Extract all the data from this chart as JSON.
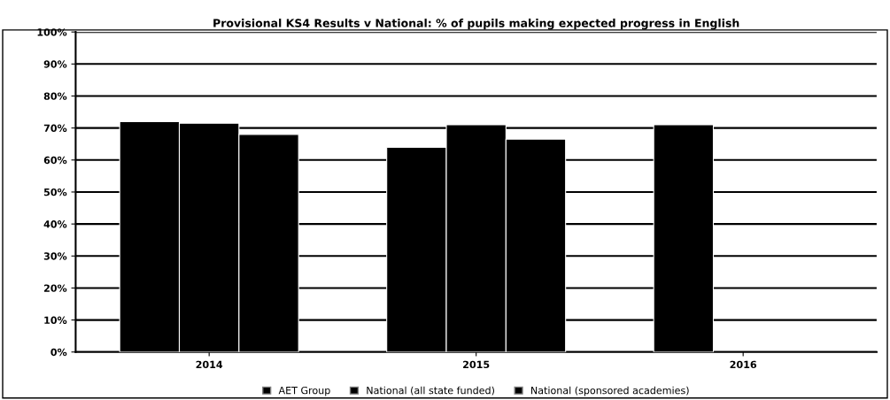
{
  "chart_data": {
    "type": "bar",
    "title": "Provisional KS4 Results v National: % of pupils making expected progress in English",
    "categories": [
      "2014",
      "2015",
      "2016"
    ],
    "series": [
      {
        "name": "AET Group",
        "color": "#000000",
        "values": [
          72,
          64,
          71
        ]
      },
      {
        "name": "National (all state funded)",
        "color": "#000000",
        "values": [
          71.5,
          71,
          null
        ]
      },
      {
        "name": "National (sponsored academies)",
        "color": "#000000",
        "values": [
          68,
          66.5,
          null
        ]
      }
    ],
    "ylim": [
      0,
      100
    ],
    "yticks": [
      {
        "value": 0,
        "label": "0%"
      },
      {
        "value": 10,
        "label": "10%"
      },
      {
        "value": 20,
        "label": "20%"
      },
      {
        "value": 30,
        "label": "30%"
      },
      {
        "value": 40,
        "label": "40%"
      },
      {
        "value": 50,
        "label": "50%"
      },
      {
        "value": 60,
        "label": "60%"
      },
      {
        "value": 70,
        "label": "70%"
      },
      {
        "value": 80,
        "label": "80%"
      },
      {
        "value": 90,
        "label": "90%"
      },
      {
        "value": 100,
        "label": "100%"
      }
    ],
    "grid": "y",
    "legend": "bottom"
  }
}
